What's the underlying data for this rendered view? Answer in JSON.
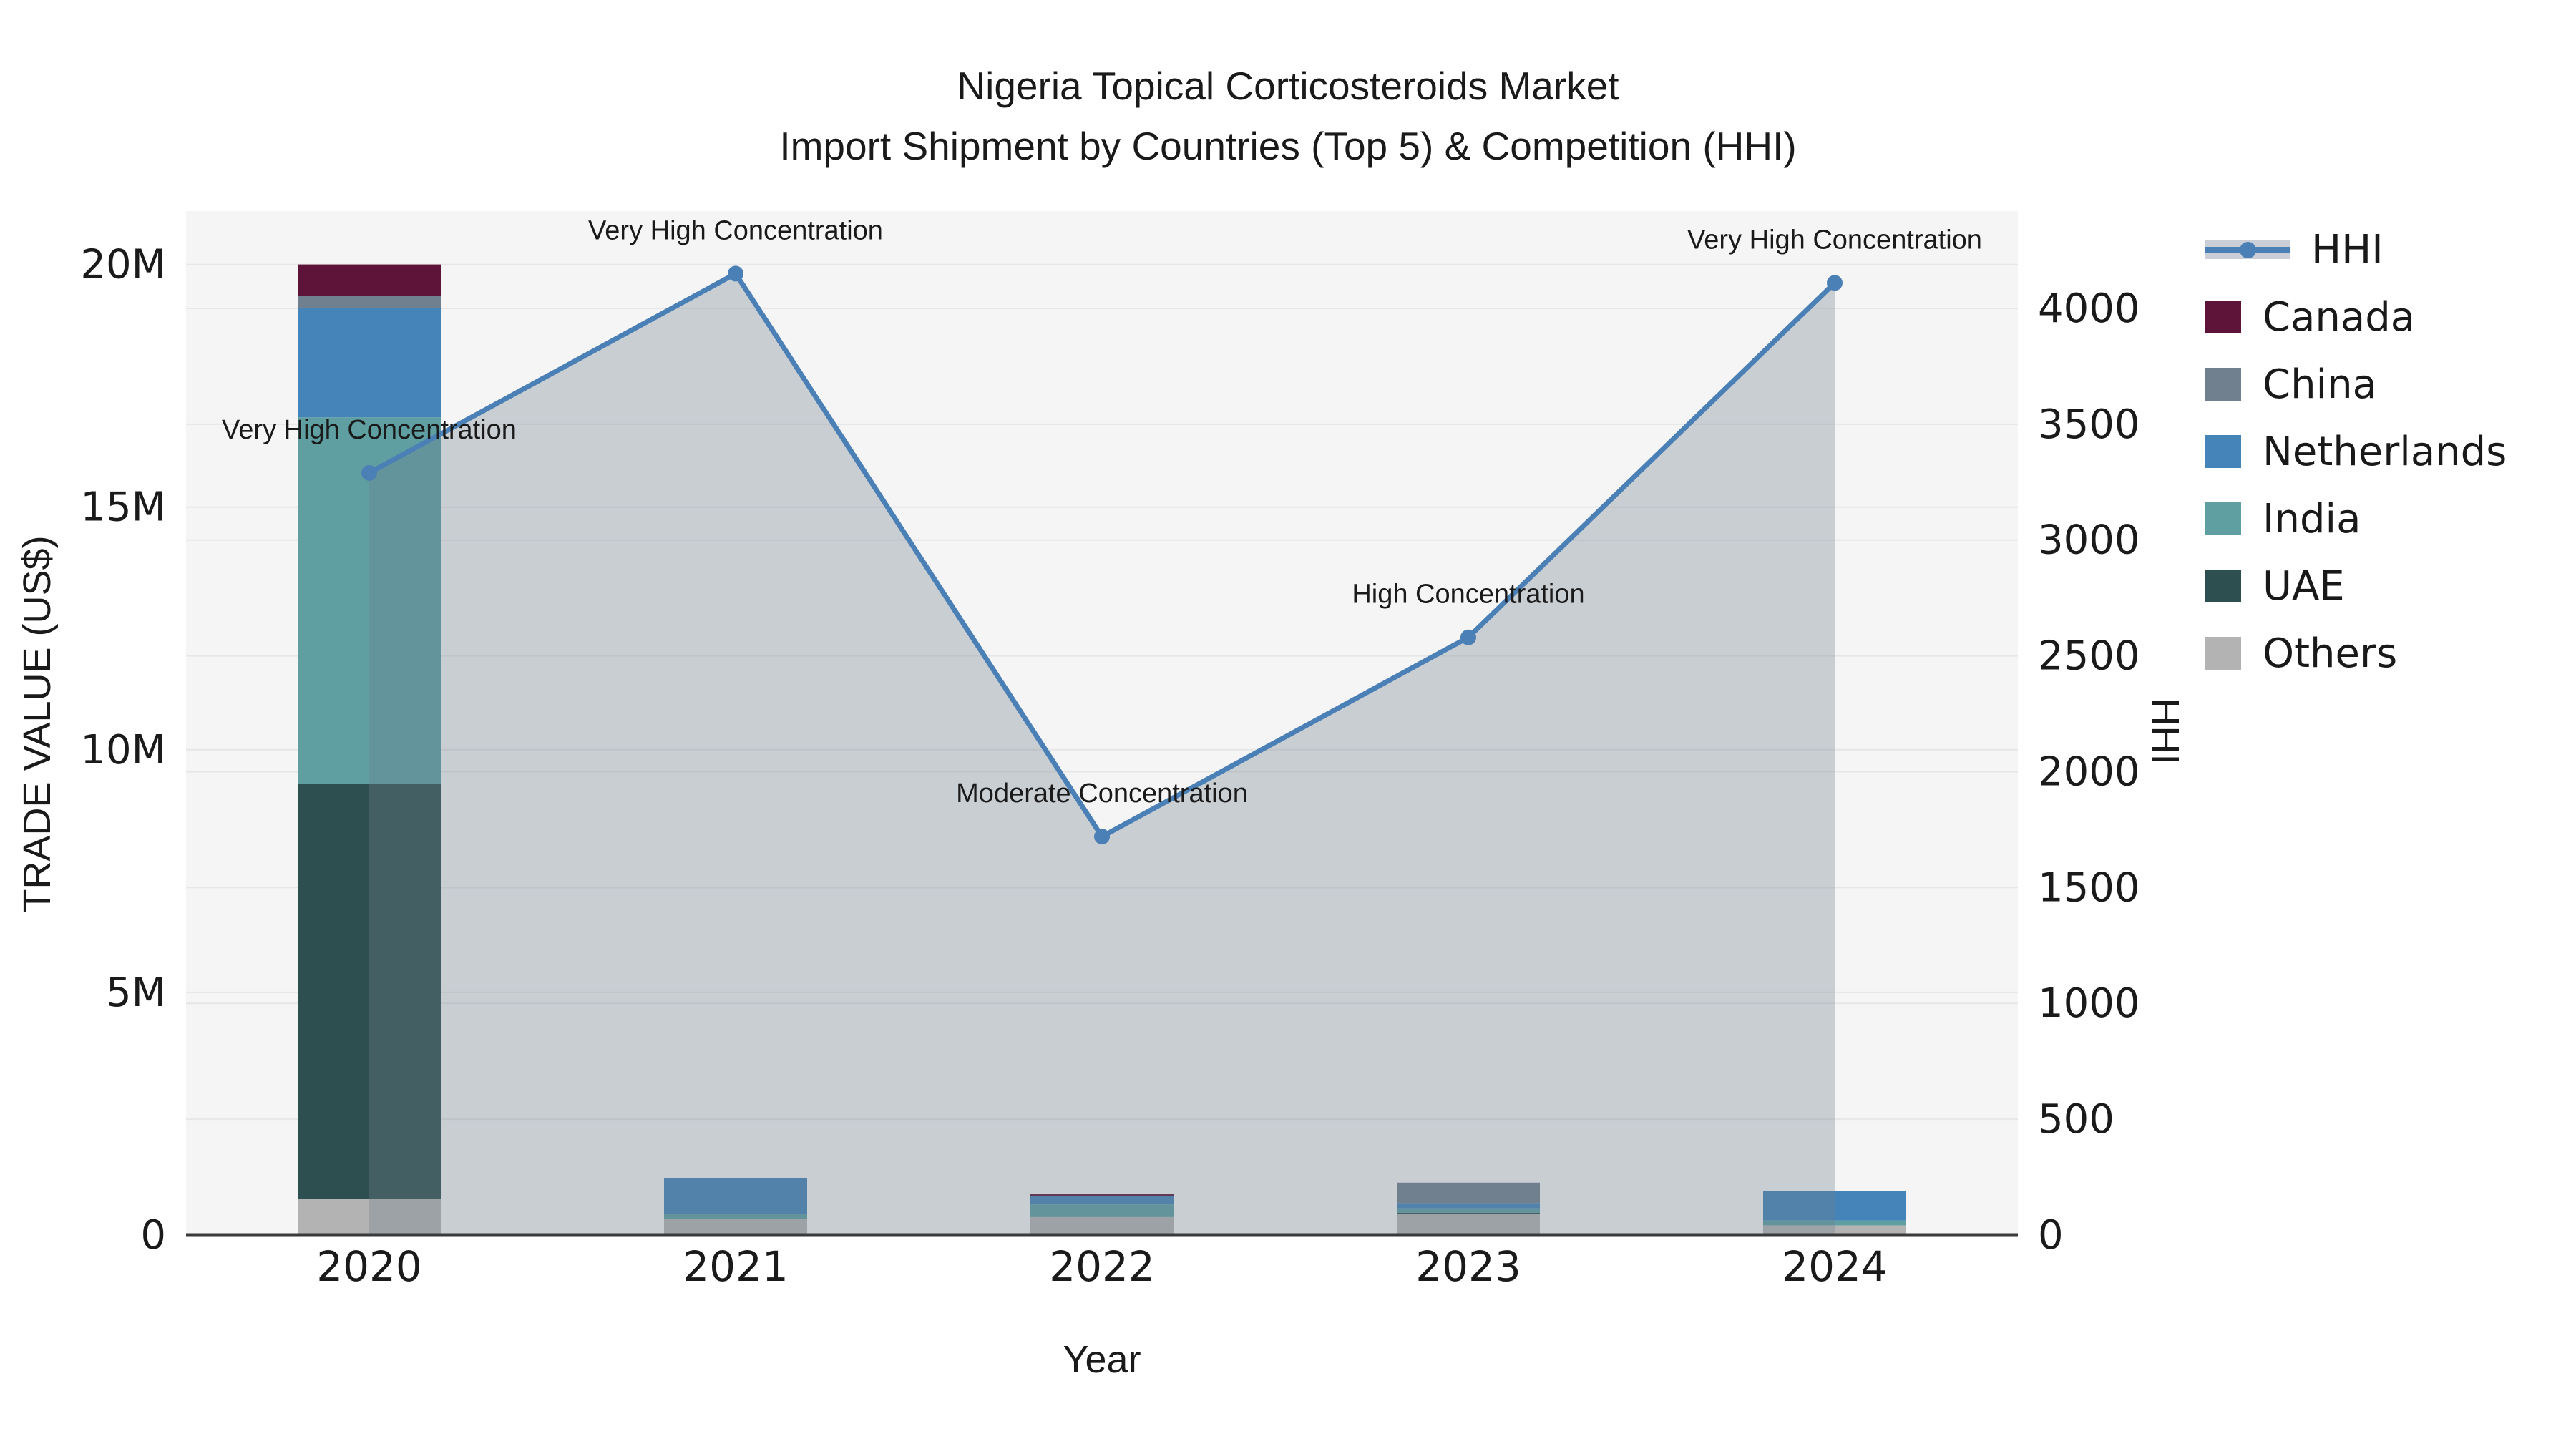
{
  "title": {
    "line1": "Nigeria Topical Corticosteroids Market",
    "line2": "Import Shipment by Countries (Top 5) & Competition (HHI)"
  },
  "chart_data": {
    "type": "combo-stacked-bar-line",
    "categories": [
      "2020",
      "2021",
      "2022",
      "2023",
      "2024"
    ],
    "xlabel": "Year",
    "bar_series": [
      {
        "name": "Others",
        "color": "#b3b3b3",
        "values_musd": [
          0.75,
          0.33,
          0.37,
          0.43,
          0.2
        ]
      },
      {
        "name": "UAE",
        "color": "#2e4f4f",
        "values_musd": [
          8.55,
          0,
          0,
          0.03,
          0
        ]
      },
      {
        "name": "India",
        "color": "#5f9fa1",
        "values_musd": [
          7.55,
          0.1,
          0.26,
          0.09,
          0.1
        ]
      },
      {
        "name": "Netherlands",
        "color": "#4484b8",
        "values_musd": [
          2.25,
          0.75,
          0.18,
          0.11,
          0.6
        ]
      },
      {
        "name": "China",
        "color": "#71808f",
        "values_musd": [
          0.25,
          0,
          0,
          0.42,
          0
        ]
      },
      {
        "name": "Canada",
        "color": "#5e1338",
        "values_musd": [
          0.65,
          0,
          0.03,
          0,
          0
        ]
      }
    ],
    "line_series": {
      "name": "HHI",
      "color": "#4a80b5",
      "area_fill": "rgba(112,128,144,0.33)",
      "values": [
        3290,
        4150,
        1720,
        2580,
        4110
      ]
    },
    "annotations": [
      {
        "category": "2020",
        "text": "Very High Concentration"
      },
      {
        "category": "2021",
        "text": "Very High Concentration"
      },
      {
        "category": "2022",
        "text": "Moderate Concentration"
      },
      {
        "category": "2023",
        "text": "High Concentration"
      },
      {
        "category": "2024",
        "text": "Very High Concentration"
      }
    ],
    "y_left": {
      "label": "TRADE VALUE (US$)",
      "tick_values": [
        0,
        5,
        10,
        15,
        20
      ],
      "tick_labels": [
        "0",
        "5M",
        "10M",
        "15M",
        "20M"
      ],
      "range": [
        0,
        21.1
      ]
    },
    "y_right": {
      "label": "HHI",
      "tick_values": [
        0,
        500,
        1000,
        1500,
        2000,
        2500,
        3000,
        3500,
        4000
      ],
      "tick_labels": [
        "0",
        "500",
        "1000",
        "1500",
        "2000",
        "2500",
        "3000",
        "3500",
        "4000"
      ],
      "range": [
        0,
        4420
      ]
    },
    "grid": true,
    "legend_position": "top-right"
  },
  "legend": {
    "items": [
      {
        "label": "HHI",
        "type": "line",
        "color": "#4a80b5"
      },
      {
        "label": "Canada",
        "type": "patch",
        "color": "#5e1338"
      },
      {
        "label": "China",
        "type": "patch",
        "color": "#71808f"
      },
      {
        "label": "Netherlands",
        "type": "patch",
        "color": "#4484b8"
      },
      {
        "label": "India",
        "type": "patch",
        "color": "#5f9fa1"
      },
      {
        "label": "UAE",
        "type": "patch",
        "color": "#2e4f4f"
      },
      {
        "label": "Others",
        "type": "patch",
        "color": "#b3b3b3"
      }
    ]
  },
  "colors": {
    "plot_background": "#f5f5f5",
    "gridline": "#e6e6e6",
    "axis_line": "#3a3a3a",
    "text": "#1a1a1a"
  }
}
